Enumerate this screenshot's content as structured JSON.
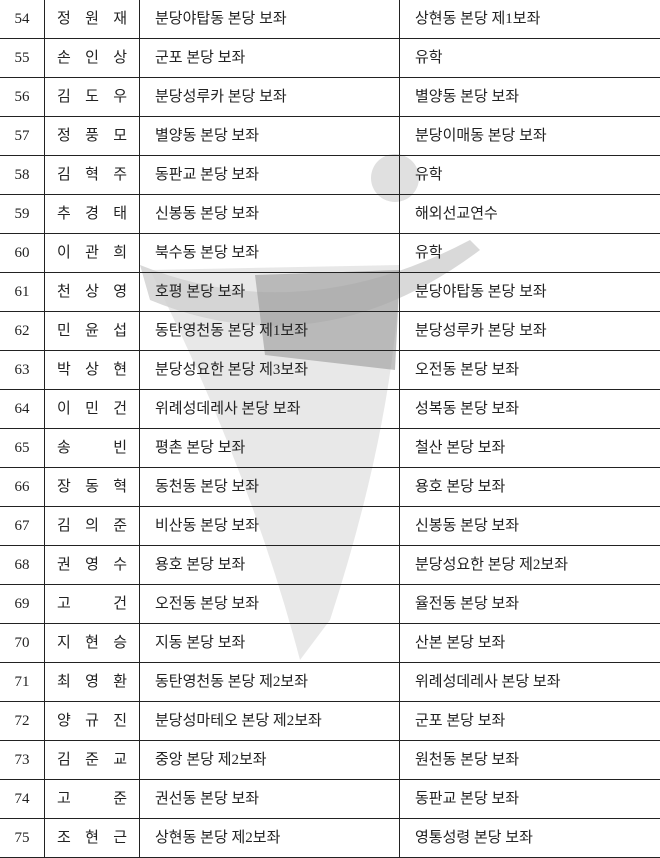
{
  "table": {
    "rows": [
      [
        "54",
        "정 원 재",
        "분당야탑동 본당 보좌",
        "상현동 본당 제1보좌"
      ],
      [
        "55",
        "손 인 상",
        "군포 본당 보좌",
        "유학"
      ],
      [
        "56",
        "김 도 우",
        "분당성루카 본당 보좌",
        "별양동 본당 보좌"
      ],
      [
        "57",
        "정 풍 모",
        "별양동 본당 보좌",
        "분당이매동 본당 보좌"
      ],
      [
        "58",
        "김 혁 주",
        "동판교 본당 보좌",
        "유학"
      ],
      [
        "59",
        "추 경 태",
        "신봉동 본당 보좌",
        "해외선교연수"
      ],
      [
        "60",
        "이 관 희",
        "북수동 본당 보좌",
        "유학"
      ],
      [
        "61",
        "천 상 영",
        "호평 본당 보좌",
        "분당야탑동 본당 보좌"
      ],
      [
        "62",
        "민 윤 섭",
        "동탄영천동 본당 제1보좌",
        "분당성루카 본당 보좌"
      ],
      [
        "63",
        "박 상 현",
        "분당성요한 본당 제3보좌",
        "오전동 본당 보좌"
      ],
      [
        "64",
        "이 민 건",
        "위례성데레사 본당 보좌",
        "성복동 본당 보좌"
      ],
      [
        "65",
        "송 빈",
        "평촌 본당 보좌",
        "철산 본당 보좌"
      ],
      [
        "66",
        "장 동 혁",
        "동천동 본당 보좌",
        "용호 본당 보좌"
      ],
      [
        "67",
        "김 의 준",
        "비산동 본당 보좌",
        "신봉동 본당 보좌"
      ],
      [
        "68",
        "권 영 수",
        "용호 본당 보좌",
        "분당성요한 본당 제2보좌"
      ],
      [
        "69",
        "고 건",
        "오전동 본당 보좌",
        "율전동 본당 보좌"
      ],
      [
        "70",
        "지 현 승",
        "지동 본당 보좌",
        "산본 본당 보좌"
      ],
      [
        "71",
        "최 영 환",
        "동탄영천동 본당 제2보좌",
        "위례성데레사 본당 보좌"
      ],
      [
        "72",
        "양 규 진",
        "분당성마테오 본당 제2보좌",
        "군포 본당 보좌"
      ],
      [
        "73",
        "김 준 교",
        "중앙 본당 제2보좌",
        "원천동 본당 보좌"
      ],
      [
        "74",
        "고 준",
        "권선동 본당 보좌",
        "동판교 본당 보좌"
      ],
      [
        "75",
        "조 현 근",
        "상현동 본당 제2보좌",
        "영통성령 본당 보좌"
      ]
    ]
  }
}
